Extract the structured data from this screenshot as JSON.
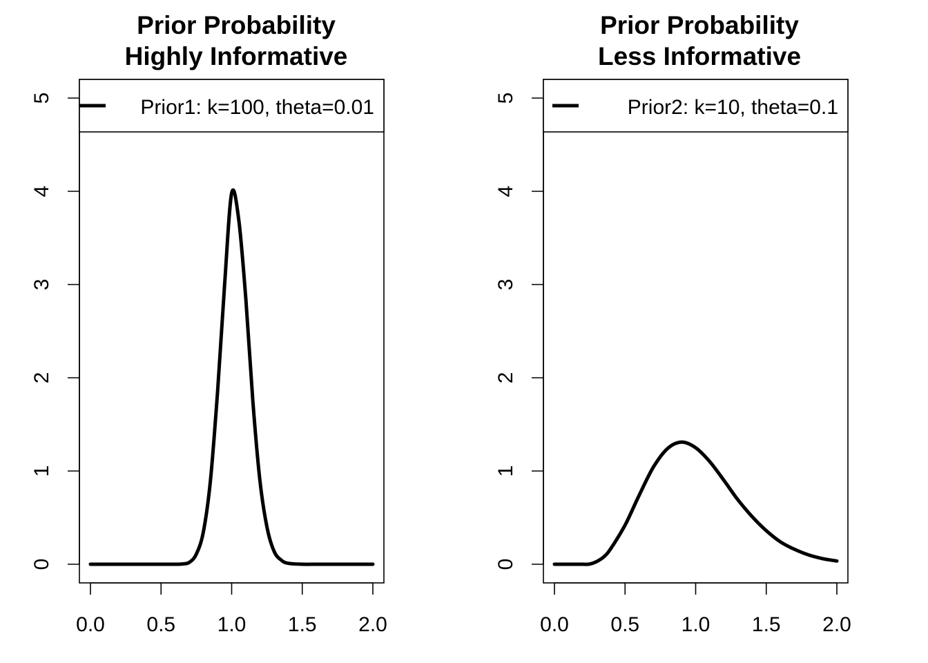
{
  "chart_data": [
    {
      "type": "line",
      "title_line1": "Prior Probability",
      "title_line2": "Highly Informative",
      "xlabel": "",
      "ylabel": "",
      "xlim": [
        0,
        2
      ],
      "ylim": [
        0,
        5
      ],
      "x_ticks": [
        "0.0",
        "0.5",
        "1.0",
        "1.5",
        "2.0"
      ],
      "y_ticks": [
        "0",
        "1",
        "2",
        "3",
        "4",
        "5"
      ],
      "legend_position": "top",
      "grid": false,
      "series": [
        {
          "name": "Prior1: k=100, theta=0.01",
          "distribution": "gamma",
          "shape_k": 100,
          "scale_theta": 0.01,
          "x": [
            0,
            0.1,
            0.2,
            0.3,
            0.4,
            0.5,
            0.6,
            0.65,
            0.7,
            0.75,
            0.8,
            0.85,
            0.9,
            0.95,
            1.0,
            1.05,
            1.1,
            1.15,
            1.2,
            1.25,
            1.3,
            1.35,
            1.4,
            1.5,
            1.6,
            1.7,
            1.8,
            1.9,
            2.0
          ],
          "y": [
            0,
            0,
            0,
            0,
            0,
            0,
            0.0,
            0.003,
            0.02,
            0.11,
            0.35,
            0.9,
            1.85,
            3.0,
            3.98,
            3.7,
            2.85,
            1.75,
            0.9,
            0.4,
            0.14,
            0.045,
            0.01,
            0,
            0,
            0,
            0,
            0,
            0
          ]
        }
      ]
    },
    {
      "type": "line",
      "title_line1": "Prior Probability",
      "title_line2": "Less Informative",
      "xlabel": "",
      "ylabel": "",
      "xlim": [
        0,
        2
      ],
      "ylim": [
        0,
        5
      ],
      "x_ticks": [
        "0.0",
        "0.5",
        "1.0",
        "1.5",
        "2.0"
      ],
      "y_ticks": [
        "0",
        "1",
        "2",
        "3",
        "4",
        "5"
      ],
      "legend_position": "top",
      "grid": false,
      "series": [
        {
          "name": "Prior2: k=10, theta=0.1",
          "distribution": "gamma",
          "shape_k": 10,
          "scale_theta": 0.1,
          "x": [
            0,
            0.1,
            0.2,
            0.25,
            0.3,
            0.35,
            0.4,
            0.5,
            0.6,
            0.7,
            0.8,
            0.9,
            1.0,
            1.1,
            1.2,
            1.3,
            1.4,
            1.5,
            1.6,
            1.7,
            1.8,
            1.9,
            2.0
          ],
          "y": [
            0,
            0,
            0.0,
            0.002,
            0.03,
            0.08,
            0.17,
            0.42,
            0.74,
            1.04,
            1.24,
            1.31,
            1.25,
            1.1,
            0.9,
            0.69,
            0.51,
            0.36,
            0.24,
            0.16,
            0.1,
            0.06,
            0.035
          ]
        }
      ]
    }
  ]
}
